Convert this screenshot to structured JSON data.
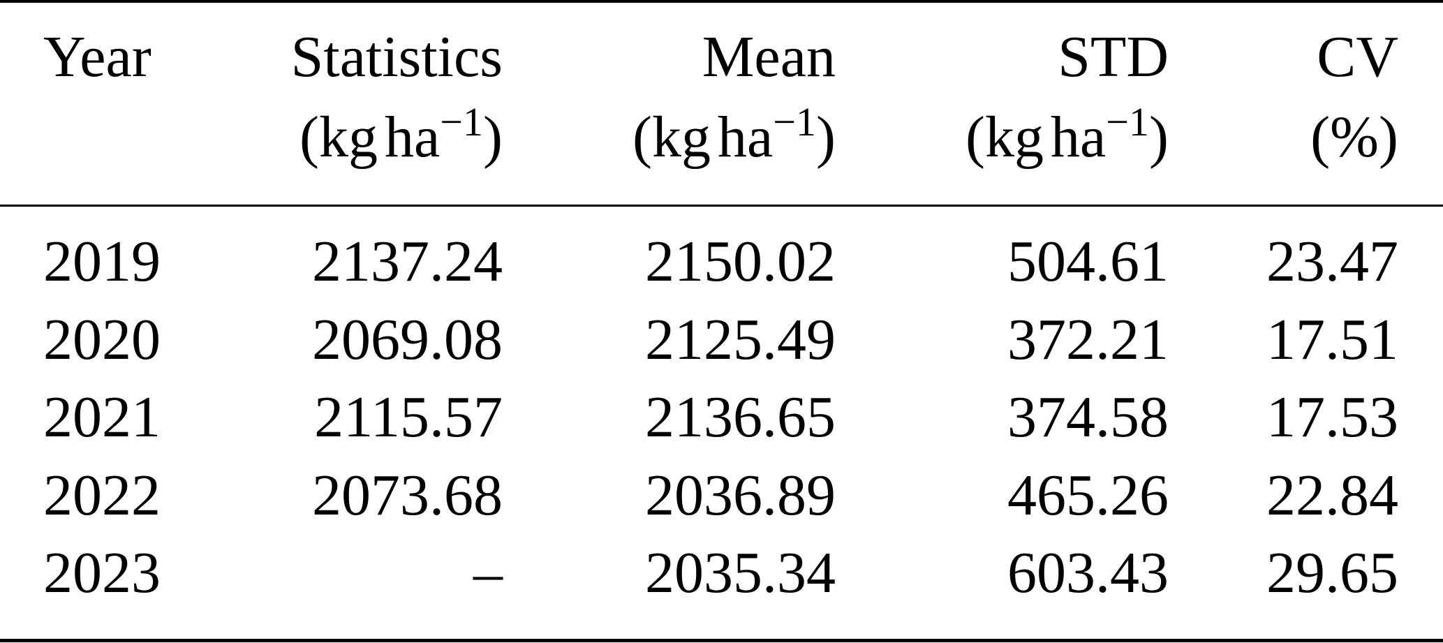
{
  "table": {
    "headers": [
      {
        "line1": "Year",
        "unit_base": "",
        "unit_exp": "",
        "unit_close": ""
      },
      {
        "line1": "Statistics",
        "unit_base": "(kg",
        "unit_mid": "ha",
        "unit_exp": "−1",
        "unit_close": ")"
      },
      {
        "line1": "Mean",
        "unit_base": "(kg",
        "unit_mid": "ha",
        "unit_exp": "−1",
        "unit_close": ")"
      },
      {
        "line1": "STD",
        "unit_base": "(kg",
        "unit_mid": "ha",
        "unit_exp": "−1",
        "unit_close": ")"
      },
      {
        "line1": "CV",
        "unit_text": "(%)"
      }
    ],
    "rows": [
      {
        "year": "2019",
        "statistics": "2137.24",
        "mean": "2150.02",
        "std": "504.61",
        "cv": "23.47"
      },
      {
        "year": "2020",
        "statistics": "2069.08",
        "mean": "2125.49",
        "std": "372.21",
        "cv": "17.51"
      },
      {
        "year": "2021",
        "statistics": "2115.57",
        "mean": "2136.65",
        "std": "374.58",
        "cv": "17.53"
      },
      {
        "year": "2022",
        "statistics": "2073.68",
        "mean": "2036.89",
        "std": "465.26",
        "cv": "22.84"
      },
      {
        "year": "2023",
        "statistics": "–",
        "mean": "2035.34",
        "std": "603.43",
        "cv": "29.65"
      }
    ]
  }
}
